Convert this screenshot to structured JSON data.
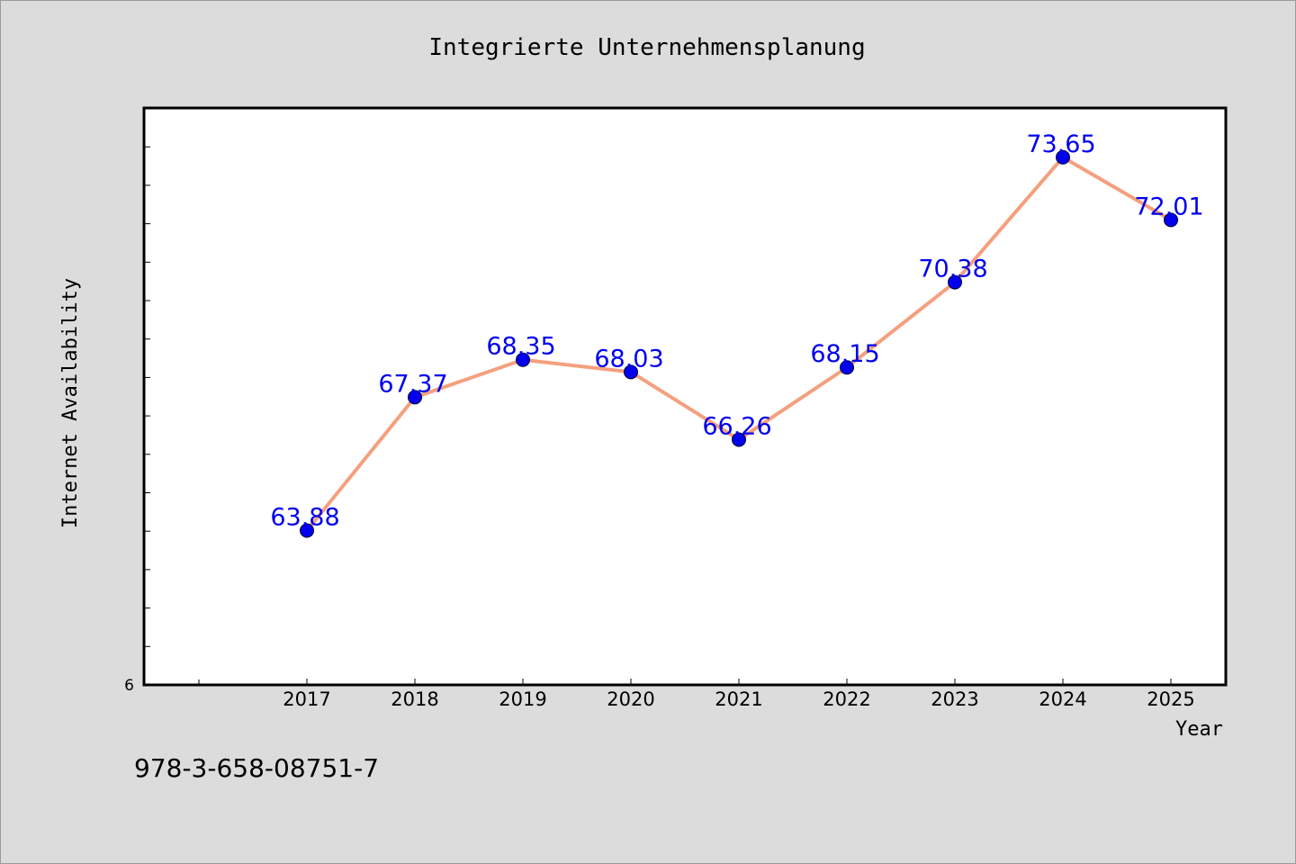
{
  "chart_data": {
    "type": "line",
    "title": "Integrierte Unternehmensplanung",
    "xlabel": "Year",
    "ylabel": "Internet Availability",
    "x": [
      "2017",
      "2018",
      "2019",
      "2020",
      "2021",
      "2022",
      "2023",
      "2024",
      "2025"
    ],
    "series": [
      {
        "values": [
          63.88,
          67.37,
          68.35,
          68.03,
          66.26,
          68.15,
          70.38,
          73.65,
          72.01
        ],
        "labels": [
          "63.88",
          "67.37",
          "68.35",
          "68.03",
          "66.26",
          "68.15",
          "70.38",
          "73.65",
          "72.01"
        ]
      }
    ],
    "ylim": [
      59.84,
      74.94
    ],
    "y_min_tick_label": "6",
    "grid": false,
    "legend": "none",
    "colors": {
      "line": "#f4a07e",
      "marker": "#0000ee",
      "data_label": "#0000ee",
      "background": "#dcdcdc",
      "plot_area": "#ffffff"
    }
  },
  "footer": {
    "isbn": "978-3-658-08751-7"
  }
}
